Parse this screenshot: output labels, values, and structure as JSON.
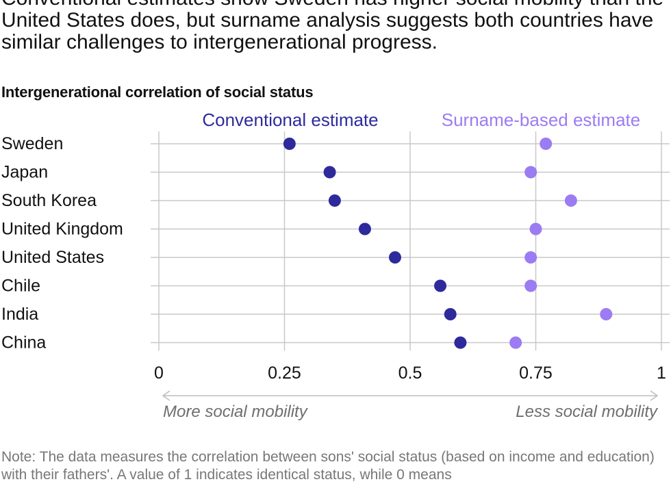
{
  "headline": "Conventional estimates show Sweden has higher social mobility than the United States does, but surname analysis suggests both countries have similar challenges to intergenerational progress.",
  "note": "Note: The data measures the correlation between sons' social status (based on income and education) with their fathers'. A value of 1 indicates identical status, while 0 means",
  "colors": {
    "conventional": "#2e2a9c",
    "surname": "#9b7cf2",
    "grid": "#c8c8c8",
    "arrow": "#bdbdbd",
    "axis_note": "#6e6e6e"
  },
  "chart_data": {
    "type": "scatter",
    "title": "Intergenerational correlation of social status",
    "categories": [
      "Sweden",
      "Japan",
      "South Korea",
      "United Kingdom",
      "United States",
      "Chile",
      "India",
      "China"
    ],
    "series": [
      {
        "name": "Conventional estimate",
        "values": [
          0.26,
          0.34,
          0.35,
          0.41,
          0.47,
          0.56,
          0.58,
          0.6
        ]
      },
      {
        "name": "Surname-based estimate",
        "values": [
          0.77,
          0.74,
          0.82,
          0.75,
          0.74,
          0.74,
          0.89,
          0.71
        ]
      }
    ],
    "xlim": [
      0,
      1
    ],
    "xticks": [
      0,
      0.25,
      0.5,
      0.75,
      1
    ],
    "xtick_labels": [
      "0",
      "0.25",
      "0.5",
      "0.75",
      "1"
    ],
    "grid": true,
    "legend_placement": "top",
    "axis_notes": {
      "left": "More social mobility",
      "right": "Less social mobility"
    }
  }
}
